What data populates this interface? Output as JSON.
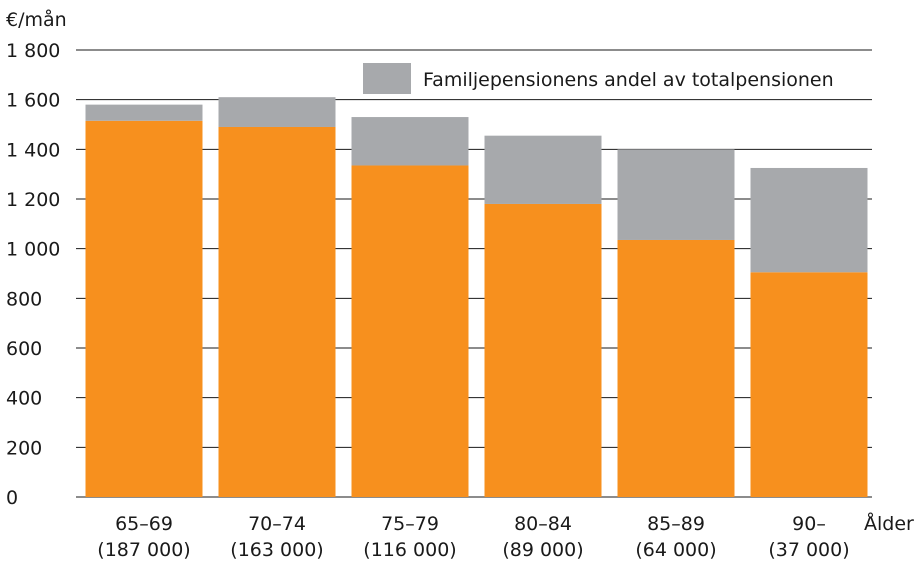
{
  "chart_data": {
    "type": "bar",
    "stacked": true,
    "ylabel": "€/mån",
    "xlabel": "Ålder",
    "ylim": [
      0,
      1800
    ],
    "yticks": [
      0,
      200,
      400,
      600,
      800,
      1000,
      1200,
      1400,
      1600,
      1800
    ],
    "ytick_labels": [
      "0",
      "200",
      "400",
      "600",
      "800",
      "1 000",
      "1 200",
      "1 400",
      "1 600",
      "1 800"
    ],
    "grid": true,
    "legend_position": "top-right",
    "categories": [
      {
        "age": "65–69",
        "count": "(187 000)"
      },
      {
        "age": "70–74",
        "count": "(163 000)"
      },
      {
        "age": "75–79",
        "count": "(116 000)"
      },
      {
        "age": "80–84",
        "count": "(89 000)"
      },
      {
        "age": "85–89",
        "count": "(64 000)"
      },
      {
        "age": "90–",
        "count": "(37 000)"
      }
    ],
    "series": [
      {
        "color": "#f7901e",
        "values": [
          1515,
          1490,
          1335,
          1180,
          1035,
          905
        ]
      },
      {
        "name": "Familjepensionens andel av totalpensionen",
        "color": "#a7a9ac",
        "values": [
          65,
          120,
          195,
          275,
          365,
          420
        ]
      }
    ]
  }
}
